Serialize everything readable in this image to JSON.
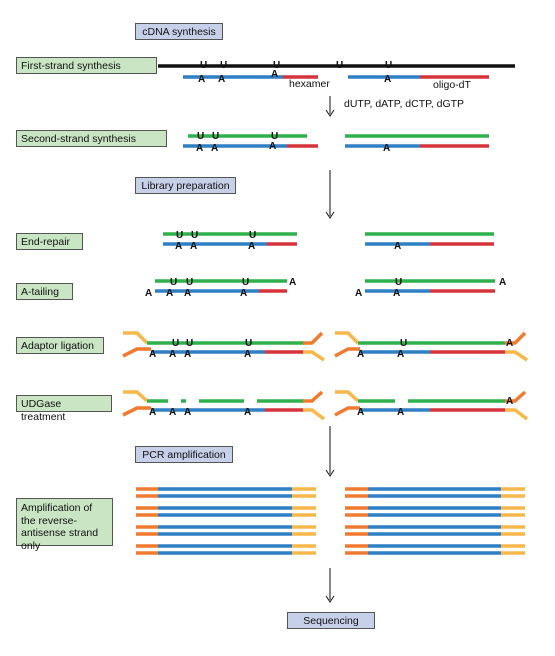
{
  "phases": {
    "cdna": "cDNA synthesis",
    "library": "Library preparation",
    "pcr": "PCR amplification",
    "seq": "Sequencing"
  },
  "steps": {
    "first": "First-strand synthesis",
    "second": "Second-strand synthesis",
    "endrepair": "End-repair",
    "atailing": "A-tailing",
    "adaptor": "Adaptor ligation",
    "udg": "UDGase treatment",
    "amplification": "Amplification of the reverse-antisense strand only"
  },
  "labels": {
    "hexamer": "hexamer",
    "oligodt": "oligo-dT",
    "dntps": "dUTP, dATP, dCTP, dGTP",
    "u": "U",
    "a": "A"
  },
  "colors": {
    "rna": "#111111",
    "cdna": "#2f7fc4",
    "primer": "#d6333a",
    "second": "#2fb04b",
    "adaptorTop": "#f7b74a",
    "adaptorBottom": "#f07a30"
  }
}
